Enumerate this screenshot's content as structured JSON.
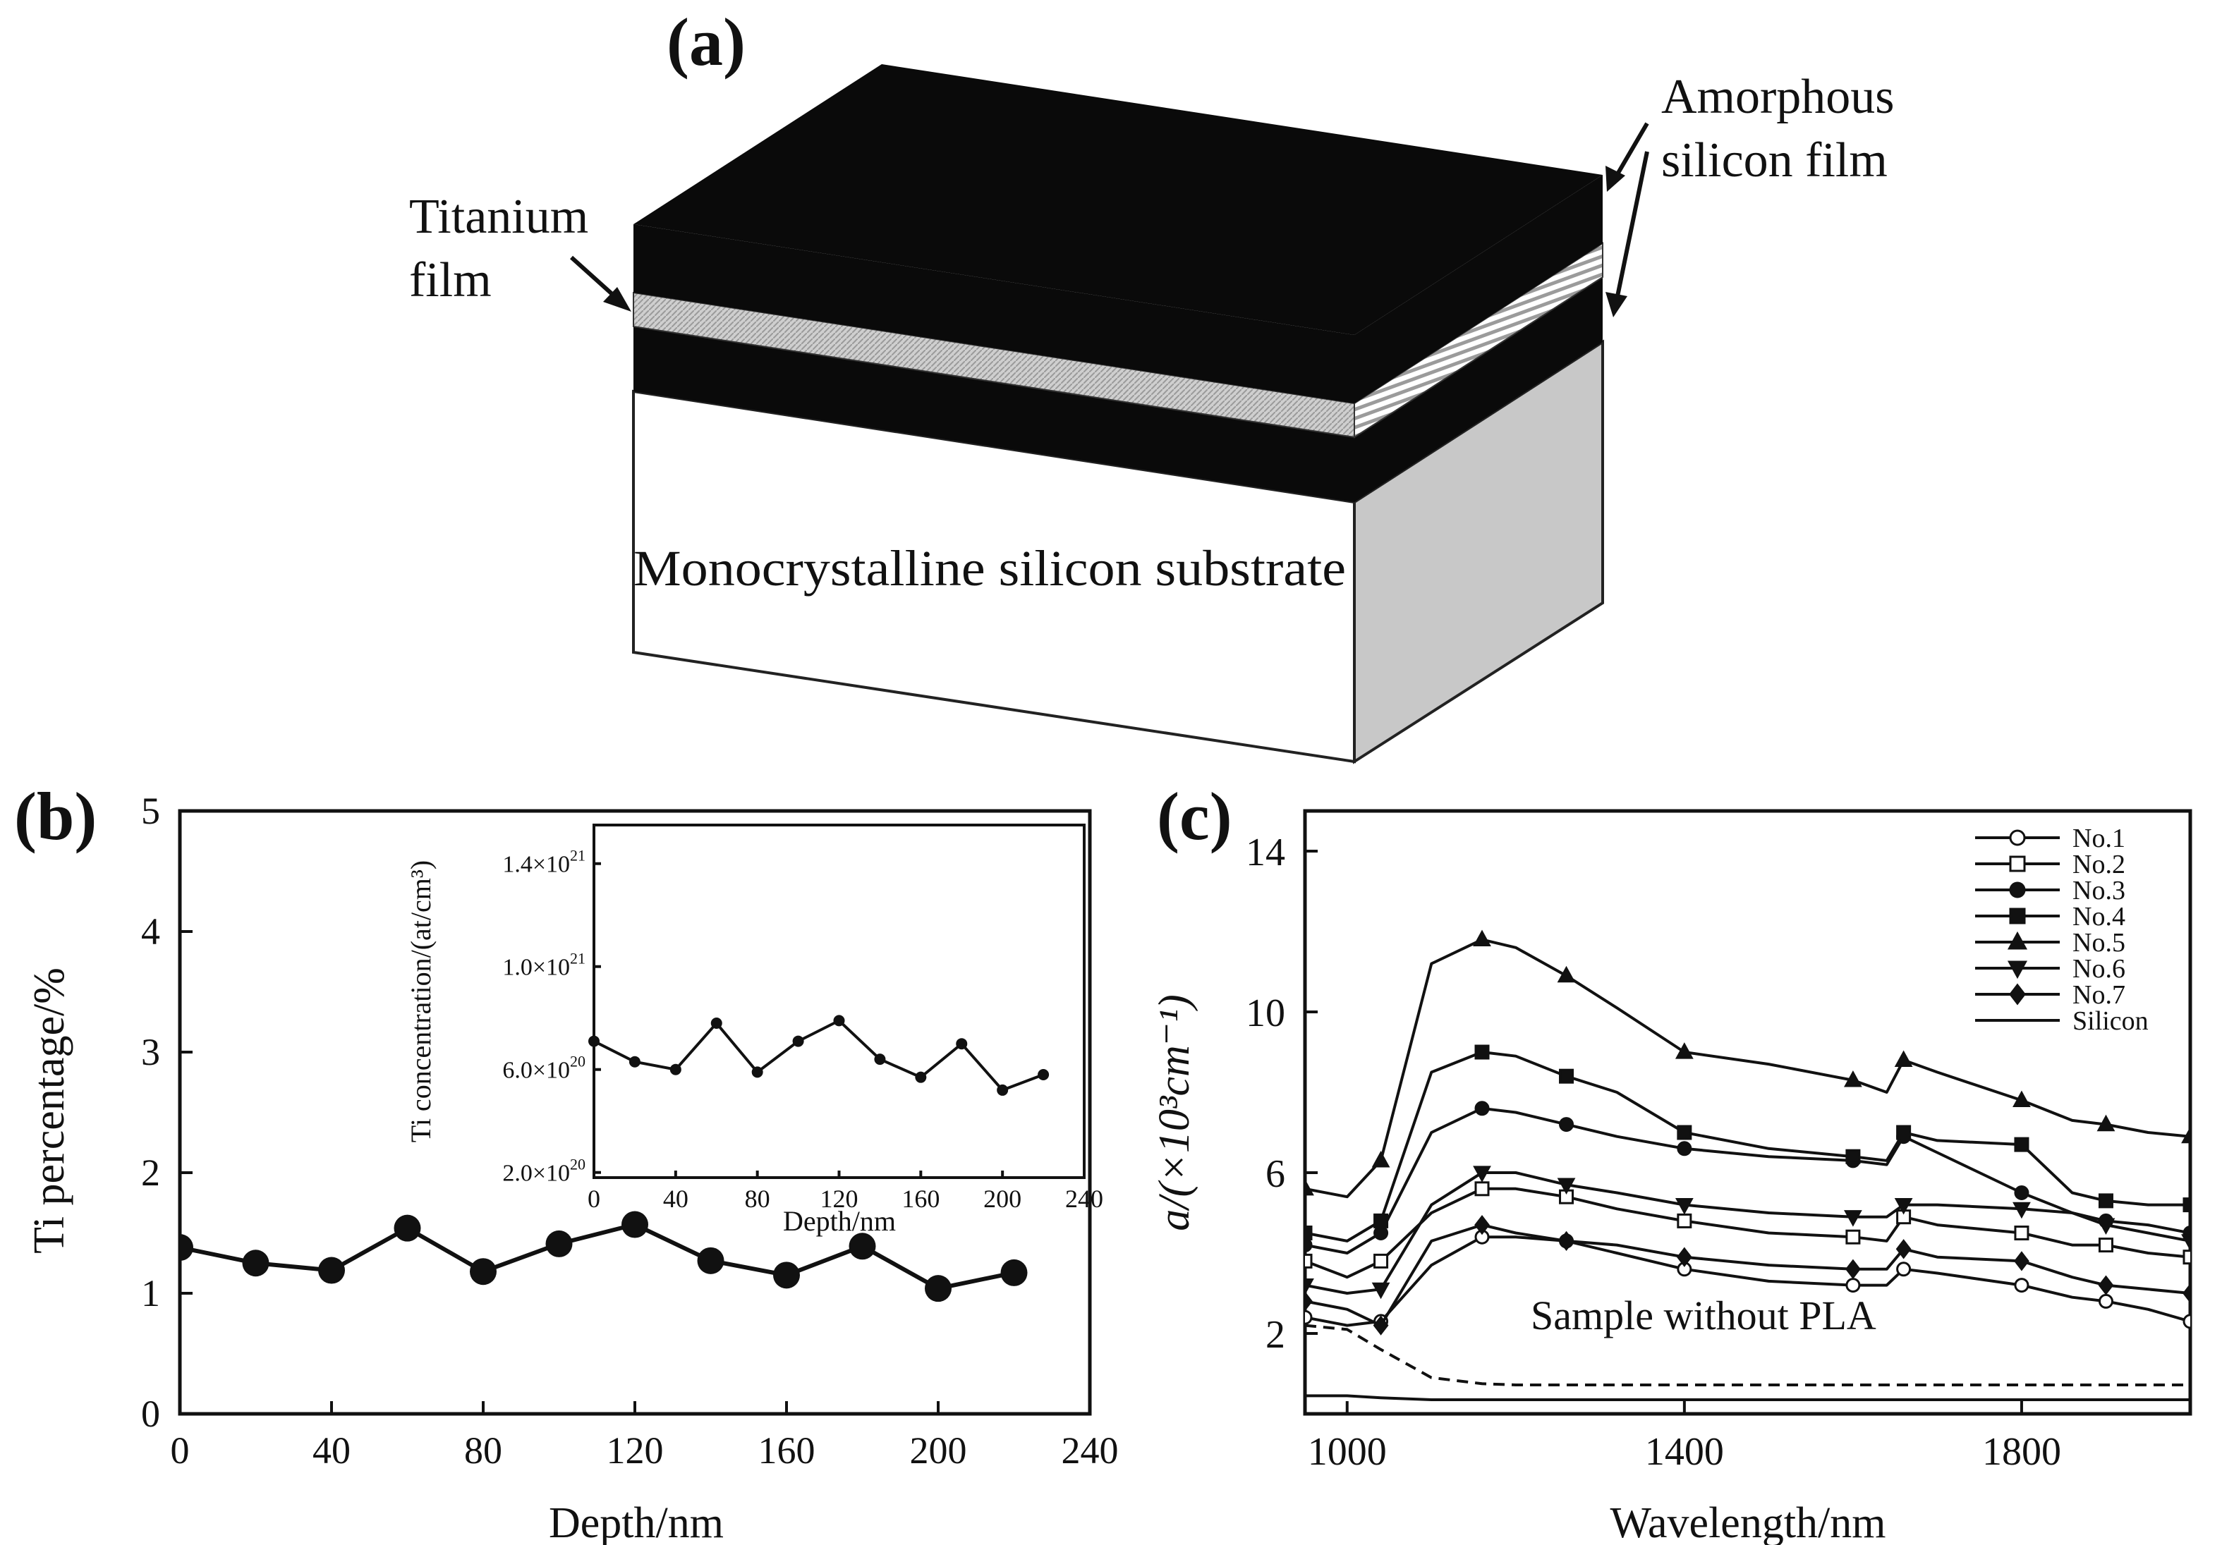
{
  "figure": {
    "panel_a": {
      "label": "(a)",
      "titanium_label": [
        "Titanium",
        "film"
      ],
      "amorphous_label": [
        "Amorphous",
        "silicon film"
      ],
      "substrate_label": "Monocrystalline silicon substrate"
    },
    "panel_b": {
      "label": "(b)"
    },
    "panel_c": {
      "label": "(c)",
      "annotation": "Sample without PLA"
    }
  },
  "chart_data": [
    {
      "id": "b-main",
      "type": "line",
      "xlabel": "Depth/nm",
      "ylabel": "Ti percentage/%",
      "xlim": [
        0,
        240
      ],
      "ylim": [
        0,
        5
      ],
      "xticks": [
        0,
        40,
        80,
        120,
        160,
        200,
        240
      ],
      "yticks": [
        0,
        1,
        2,
        3,
        4,
        5
      ],
      "marker": "filled-circle",
      "x": [
        0,
        20,
        40,
        60,
        80,
        100,
        120,
        140,
        160,
        180,
        200,
        220
      ],
      "y": [
        1.38,
        1.25,
        1.19,
        1.54,
        1.18,
        1.41,
        1.57,
        1.27,
        1.15,
        1.39,
        1.04,
        1.17
      ]
    },
    {
      "id": "b-inset",
      "type": "line",
      "xlabel": "Depth/nm",
      "ylabel": "Ti concentration/(at/cm³)",
      "xlim": [
        0,
        240
      ],
      "ylim": [
        1.8e+20,
        1.55e+21
      ],
      "xticks": [
        0,
        40,
        80,
        120,
        160,
        200,
        240
      ],
      "yticks": [
        2e+20,
        6e+20,
        1e+21,
        1.4e+21
      ],
      "ytick_labels": [
        {
          "mantissa": "2.0×10",
          "exp": "20"
        },
        {
          "mantissa": "6.0×10",
          "exp": "20"
        },
        {
          "mantissa": "1.0×10",
          "exp": "21"
        },
        {
          "mantissa": "1.4×10",
          "exp": "21"
        }
      ],
      "marker": "small-filled-circle",
      "x": [
        0,
        20,
        40,
        60,
        80,
        100,
        120,
        140,
        160,
        180,
        200,
        220
      ],
      "y": [
        7.1e+20,
        6.3e+20,
        6e+20,
        7.8e+20,
        5.9e+20,
        7.1e+20,
        7.9e+20,
        6.4e+20,
        5.7e+20,
        7e+20,
        5.2e+20,
        5.8e+20
      ]
    },
    {
      "id": "c",
      "type": "line",
      "xlabel": "Wavelength/nm",
      "ylabel": "a/(×10³cm⁻¹)",
      "xlim": [
        950,
        2000
      ],
      "ylim": [
        0,
        15
      ],
      "xticks": [
        1000,
        1400,
        1800
      ],
      "yticks": [
        2,
        6,
        10,
        14
      ],
      "legend_position": "top-right",
      "x": [
        950,
        1000,
        1040,
        1100,
        1160,
        1200,
        1260,
        1320,
        1400,
        1500,
        1600,
        1640,
        1660,
        1700,
        1800,
        1860,
        1900,
        1950,
        2000
      ],
      "series": [
        {
          "name": "No.1",
          "marker": "open-circle",
          "y": [
            2.4,
            2.2,
            2.3,
            3.7,
            4.4,
            4.4,
            4.3,
            4.0,
            3.6,
            3.3,
            3.2,
            3.2,
            3.6,
            3.5,
            3.2,
            2.9,
            2.8,
            2.6,
            2.3
          ]
        },
        {
          "name": "No.2",
          "marker": "open-square",
          "y": [
            3.8,
            3.4,
            3.8,
            5.0,
            5.6,
            5.6,
            5.4,
            5.1,
            4.8,
            4.5,
            4.4,
            4.3,
            4.9,
            4.7,
            4.5,
            4.2,
            4.2,
            4.0,
            3.9
          ]
        },
        {
          "name": "No.3",
          "marker": "filled-circle",
          "y": [
            4.2,
            4.0,
            4.5,
            7.0,
            7.6,
            7.5,
            7.2,
            6.9,
            6.6,
            6.4,
            6.3,
            6.2,
            6.9,
            6.5,
            5.5,
            5.0,
            4.8,
            4.7,
            4.5
          ]
        },
        {
          "name": "No.4",
          "marker": "filled-square",
          "y": [
            4.5,
            4.3,
            4.8,
            8.5,
            9.0,
            8.9,
            8.4,
            8.0,
            7.0,
            6.6,
            6.4,
            6.3,
            7.0,
            6.8,
            6.7,
            5.5,
            5.3,
            5.2,
            5.2
          ]
        },
        {
          "name": "No.5",
          "marker": "filled-triangle-up",
          "y": [
            5.6,
            5.4,
            6.3,
            11.2,
            11.8,
            11.6,
            10.9,
            10.1,
            9.0,
            8.7,
            8.3,
            8.0,
            8.8,
            8.5,
            7.8,
            7.3,
            7.2,
            7.0,
            6.9
          ]
        },
        {
          "name": "No.6",
          "marker": "filled-triangle-down",
          "y": [
            3.2,
            3.0,
            3.1,
            5.2,
            6.0,
            6.0,
            5.7,
            5.5,
            5.2,
            5.0,
            4.9,
            4.9,
            5.2,
            5.2,
            5.1,
            5.0,
            4.7,
            4.5,
            4.3
          ]
        },
        {
          "name": "No.7",
          "marker": "filled-diamond",
          "y": [
            2.8,
            2.6,
            2.2,
            4.3,
            4.7,
            4.5,
            4.3,
            4.2,
            3.9,
            3.7,
            3.6,
            3.6,
            4.1,
            3.9,
            3.8,
            3.4,
            3.2,
            3.1,
            3.0
          ]
        },
        {
          "name": "Silicon",
          "marker": "none",
          "y": [
            0.45,
            0.45,
            0.4,
            0.35,
            0.35,
            0.35,
            0.35,
            0.35,
            0.35,
            0.35,
            0.35,
            0.35,
            0.35,
            0.35,
            0.35,
            0.35,
            0.35,
            0.35,
            0.35
          ]
        },
        {
          "name": "Sample without PLA",
          "marker": "none",
          "line": "dashed",
          "y": [
            2.2,
            2.1,
            1.6,
            0.9,
            0.75,
            0.72,
            0.72,
            0.72,
            0.72,
            0.72,
            0.72,
            0.72,
            0.72,
            0.72,
            0.72,
            0.72,
            0.72,
            0.72,
            0.72
          ]
        }
      ]
    }
  ]
}
